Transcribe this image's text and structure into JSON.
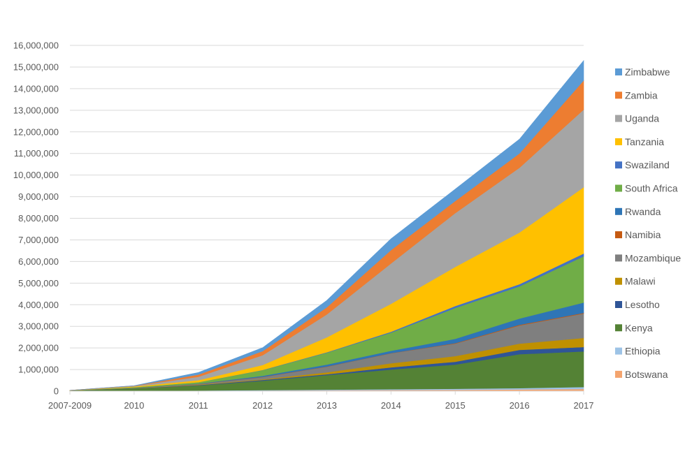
{
  "chart_data": {
    "type": "area",
    "stacked": true,
    "title": "",
    "xlabel": "",
    "ylabel": "",
    "ylim": [
      0,
      16000000
    ],
    "y_tick_step": 1000000,
    "y_ticks": [
      "0",
      "1,000,000",
      "2,000,000",
      "3,000,000",
      "4,000,000",
      "5,000,000",
      "6,000,000",
      "7,000,000",
      "8,000,000",
      "9,000,000",
      "10,000,000",
      "11,000,000",
      "12,000,000",
      "13,000,000",
      "14,000,000",
      "15,000,000",
      "16,000,000"
    ],
    "grid": true,
    "legend_position": "right",
    "categories": [
      "2007-2009",
      "2010",
      "2011",
      "2012",
      "2013",
      "2014",
      "2015",
      "2016",
      "2017"
    ],
    "series": [
      {
        "name": "Botswana",
        "color": "#f4a46e",
        "values": [
          2000,
          10000,
          20000,
          30000,
          40000,
          50000,
          60000,
          80000,
          100000
        ]
      },
      {
        "name": "Ethiopia",
        "color": "#9dc3e6",
        "values": [
          1000,
          5000,
          10000,
          20000,
          30000,
          40000,
          50000,
          60000,
          90000
        ]
      },
      {
        "name": "Kenya",
        "color": "#548235",
        "values": [
          30000,
          110000,
          230000,
          430000,
          670000,
          910000,
          1120000,
          1570000,
          1650000
        ]
      },
      {
        "name": "Lesotho",
        "color": "#2f5597",
        "values": [
          0,
          5000,
          20000,
          40000,
          40000,
          100000,
          130000,
          200000,
          200000
        ]
      },
      {
        "name": "Malawi",
        "color": "#bf9000",
        "values": [
          0,
          5000,
          20000,
          30000,
          90000,
          190000,
          260000,
          290000,
          420000
        ]
      },
      {
        "name": "Mozambique",
        "color": "#7f7f7f",
        "values": [
          1000,
          10000,
          30000,
          100000,
          260000,
          460000,
          580000,
          840000,
          1130000
        ]
      },
      {
        "name": "Namibia",
        "color": "#c55a11",
        "values": [
          0,
          2000,
          5000,
          10000,
          10000,
          10000,
          20000,
          30000,
          30000
        ]
      },
      {
        "name": "Rwanda",
        "color": "#2e75b6",
        "values": [
          0,
          5000,
          15000,
          50000,
          90000,
          110000,
          200000,
          290000,
          480000
        ]
      },
      {
        "name": "South Africa",
        "color": "#70ad47",
        "values": [
          2000,
          30000,
          60000,
          260000,
          550000,
          840000,
          1430000,
          1490000,
          2140000
        ]
      },
      {
        "name": "Swaziland",
        "color": "#4472c4",
        "values": [
          0,
          2000,
          5000,
          10000,
          20000,
          40000,
          90000,
          100000,
          130000
        ]
      },
      {
        "name": "Tanzania",
        "color": "#ffc000",
        "values": [
          2000,
          30000,
          90000,
          230000,
          690000,
          1290000,
          1810000,
          2390000,
          3070000
        ]
      },
      {
        "name": "Uganda",
        "color": "#a5a5a5",
        "values": [
          1000,
          25000,
          160000,
          450000,
          1060000,
          1870000,
          2490000,
          3000000,
          3590000
        ]
      },
      {
        "name": "Zambia",
        "color": "#ed7d31",
        "values": [
          1000,
          10000,
          100000,
          190000,
          330000,
          620000,
          560000,
          660000,
          1350000
        ]
      },
      {
        "name": "Zimbabwe",
        "color": "#5b9bd5",
        "values": [
          0,
          5000,
          100000,
          160000,
          320000,
          520000,
          550000,
          660000,
          920000
        ]
      }
    ]
  }
}
